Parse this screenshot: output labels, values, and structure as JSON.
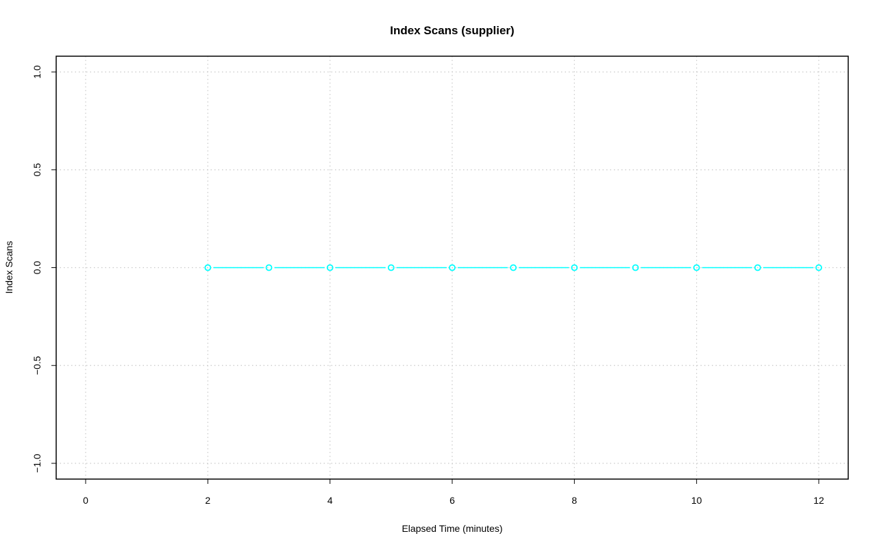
{
  "chart_data": {
    "type": "line",
    "title": "Index Scans (supplier)",
    "xlabel": "Elapsed Time (minutes)",
    "ylabel": "Index Scans",
    "xlim": [
      0,
      12
    ],
    "ylim": [
      -1,
      1
    ],
    "x_ticks": [
      0,
      2,
      4,
      6,
      8,
      10,
      12
    ],
    "y_ticks": [
      -1.0,
      -0.5,
      0.0,
      0.5,
      1.0
    ],
    "x_tick_labels": [
      "0",
      "2",
      "4",
      "6",
      "8",
      "10",
      "12"
    ],
    "y_tick_labels": [
      "−1.0",
      "−0.5",
      "0.0",
      "0.5",
      "1.0"
    ],
    "grid": true,
    "marker": "open-circle",
    "series": [
      {
        "color": "#00FFFF",
        "x": [
          2,
          3,
          4,
          5,
          6,
          7,
          8,
          9,
          10,
          11,
          12
        ],
        "y": [
          0,
          0,
          0,
          0,
          0,
          0,
          0,
          0,
          0,
          0,
          0
        ]
      }
    ]
  }
}
